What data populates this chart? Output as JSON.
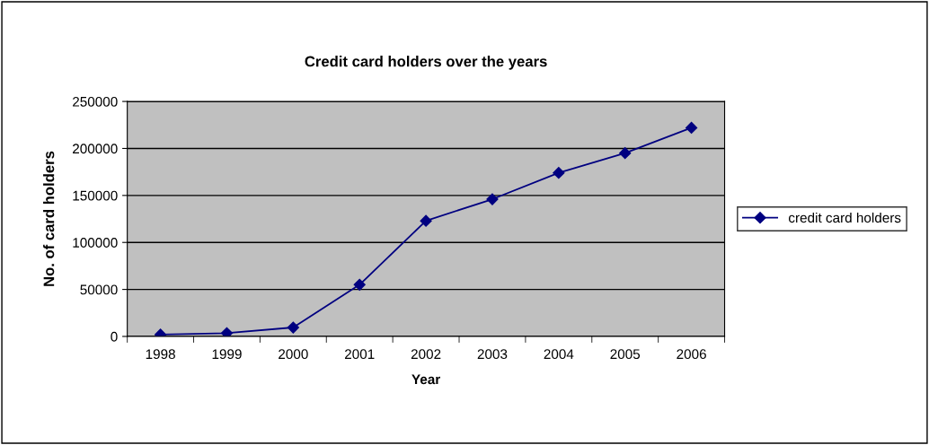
{
  "chart_data": {
    "type": "line",
    "title": "Credit card holders over the years",
    "xlabel": "Year",
    "ylabel": "No. of card holders",
    "categories": [
      "1998",
      "1999",
      "2000",
      "2001",
      "2002",
      "2003",
      "2004",
      "2005",
      "2006"
    ],
    "series": [
      {
        "name": "credit card holders",
        "color": "#000080",
        "values": [
          2000,
          3500,
          9500,
          55000,
          123000,
          146000,
          174000,
          195000,
          222000
        ]
      }
    ],
    "ylim": [
      0,
      250000
    ],
    "yticks": [
      0,
      50000,
      100000,
      150000,
      200000,
      250000
    ],
    "grid": "y",
    "legend": "right",
    "marker": "diamond",
    "line_style": "solid"
  }
}
